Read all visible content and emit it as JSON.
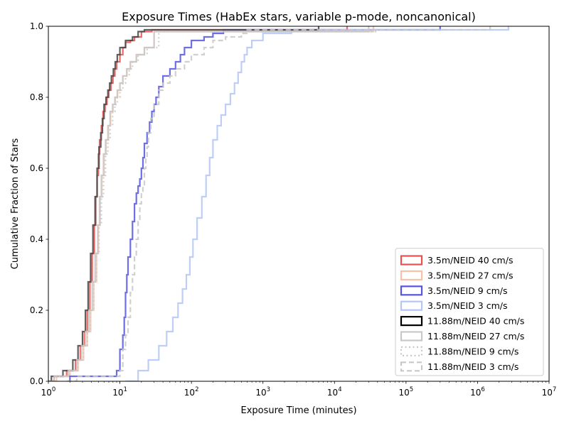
{
  "chart_data": {
    "type": "line",
    "subtype": "cumulative-step",
    "title": "Exposure Times (HabEx stars, variable p-mode, noncanonical)",
    "xlabel": "Exposure Time (minutes)",
    "ylabel": "Cumulative Fraction of Stars",
    "xscale": "log",
    "xlim": [
      1,
      10000000
    ],
    "ylim": [
      0,
      1
    ],
    "grid": false,
    "legend_position": "lower-right",
    "x_ticks": [
      {
        "base": "10",
        "exp": "0"
      },
      {
        "base": "10",
        "exp": "1"
      },
      {
        "base": "10",
        "exp": "2"
      },
      {
        "base": "10",
        "exp": "3"
      },
      {
        "base": "10",
        "exp": "4"
      },
      {
        "base": "10",
        "exp": "5"
      },
      {
        "base": "10",
        "exp": "6"
      },
      {
        "base": "10",
        "exp": "7"
      }
    ],
    "y_ticks": [
      "0.0",
      "0.2",
      "0.4",
      "0.6",
      "0.8",
      "1.0"
    ],
    "series": [
      {
        "name": "3.5m/NEID 40 cm/s",
        "color": "#e8514f",
        "style": "solid",
        "x": [
          1,
          1.2,
          1.8,
          2.4,
          2.8,
          3.2,
          3.5,
          3.8,
          4.1,
          4.4,
          4.6,
          4.8,
          5.0,
          5.2,
          5.5,
          5.8,
          6.2,
          6.6,
          7.0,
          7.5,
          8.0,
          8.5,
          9.0,
          10,
          11,
          12,
          14,
          16,
          20,
          28,
          15000
        ],
        "y": [
          0.0,
          0.014,
          0.03,
          0.06,
          0.1,
          0.14,
          0.2,
          0.28,
          0.36,
          0.44,
          0.52,
          0.58,
          0.64,
          0.68,
          0.72,
          0.76,
          0.78,
          0.8,
          0.82,
          0.84,
          0.86,
          0.88,
          0.9,
          0.92,
          0.94,
          0.955,
          0.96,
          0.97,
          0.985,
          0.99,
          1.0
        ]
      },
      {
        "name": "3.5m/NEID 27 cm/s",
        "color": "#f9c2a6",
        "style": "solid",
        "x": [
          1,
          1.3,
          2.0,
          2.6,
          3.1,
          3.5,
          3.9,
          4.3,
          4.7,
          5.0,
          5.3,
          5.6,
          6.0,
          6.4,
          6.9,
          7.4,
          8.0,
          8.6,
          9.3,
          10,
          11,
          12.5,
          14,
          17,
          22,
          30,
          35000
        ],
        "y": [
          0.0,
          0.014,
          0.03,
          0.06,
          0.1,
          0.14,
          0.2,
          0.28,
          0.36,
          0.44,
          0.52,
          0.58,
          0.64,
          0.68,
          0.72,
          0.76,
          0.78,
          0.8,
          0.82,
          0.84,
          0.86,
          0.88,
          0.9,
          0.92,
          0.94,
          0.985,
          1.0
        ]
      },
      {
        "name": "3.5m/NEID 9 cm/s",
        "color": "#5555e0",
        "style": "solid",
        "x": [
          1.9,
          2.0,
          9.0,
          10,
          11,
          11.5,
          12,
          12.5,
          13,
          14,
          15,
          16,
          17,
          18,
          19,
          20,
          21,
          22,
          24,
          26,
          28,
          30,
          32,
          35,
          40,
          50,
          60,
          70,
          80,
          100,
          150,
          200,
          280,
          300000
        ],
        "y": [
          0.0,
          0.014,
          0.03,
          0.09,
          0.13,
          0.18,
          0.25,
          0.3,
          0.35,
          0.4,
          0.45,
          0.5,
          0.53,
          0.55,
          0.57,
          0.6,
          0.63,
          0.67,
          0.7,
          0.73,
          0.76,
          0.78,
          0.8,
          0.83,
          0.86,
          0.88,
          0.9,
          0.92,
          0.94,
          0.96,
          0.97,
          0.98,
          0.99,
          1.0
        ]
      },
      {
        "name": "3.5m/NEID 3 cm/s",
        "color": "#b3c6f5",
        "style": "solid",
        "x": [
          12,
          18,
          25,
          35,
          45,
          55,
          65,
          75,
          85,
          95,
          105,
          120,
          140,
          160,
          180,
          200,
          230,
          260,
          300,
          350,
          400,
          450,
          500,
          550,
          600,
          700,
          1000,
          2500,
          2700000
        ],
        "y": [
          0.0,
          0.03,
          0.06,
          0.1,
          0.14,
          0.18,
          0.22,
          0.26,
          0.3,
          0.35,
          0.4,
          0.46,
          0.52,
          0.58,
          0.63,
          0.68,
          0.72,
          0.75,
          0.78,
          0.81,
          0.84,
          0.87,
          0.9,
          0.92,
          0.94,
          0.96,
          0.98,
          0.99,
          1.0
        ]
      },
      {
        "name": "11.88m/NEID 40 cm/s",
        "color": "#444444",
        "style": "solid",
        "legend_edge": "#000000",
        "x": [
          1,
          1.1,
          1.6,
          2.2,
          2.6,
          3.0,
          3.3,
          3.6,
          3.9,
          4.2,
          4.5,
          4.8,
          5.1,
          5.4,
          5.7,
          6.0,
          6.4,
          6.8,
          7.2,
          7.6,
          8.1,
          8.6,
          9.2,
          10,
          12,
          15,
          18,
          22,
          6000
        ],
        "y": [
          0.0,
          0.014,
          0.03,
          0.06,
          0.1,
          0.14,
          0.2,
          0.28,
          0.36,
          0.44,
          0.52,
          0.6,
          0.66,
          0.7,
          0.74,
          0.78,
          0.8,
          0.82,
          0.84,
          0.86,
          0.88,
          0.9,
          0.92,
          0.94,
          0.96,
          0.97,
          0.985,
          0.99,
          1.0
        ]
      },
      {
        "name": "11.88m/NEID 27 cm/s",
        "color": "#c8c8c8",
        "style": "solid",
        "x": [
          1,
          1.2,
          1.9,
          2.5,
          2.9,
          3.3,
          3.7,
          4.1,
          4.5,
          4.9,
          5.2,
          5.5,
          5.9,
          6.3,
          6.8,
          7.3,
          7.9,
          8.5,
          9.2,
          10,
          11,
          12.5,
          14,
          17,
          22,
          30,
          30000
        ],
        "y": [
          0.0,
          0.014,
          0.03,
          0.06,
          0.1,
          0.14,
          0.2,
          0.28,
          0.36,
          0.44,
          0.52,
          0.58,
          0.64,
          0.68,
          0.72,
          0.76,
          0.78,
          0.8,
          0.82,
          0.84,
          0.86,
          0.88,
          0.9,
          0.92,
          0.94,
          0.985,
          1.0
        ]
      },
      {
        "name": "11.88m/NEID 9 cm/s",
        "color": "#c8c8c8",
        "style": "dotted",
        "x": [
          1,
          1.2,
          2.0,
          2.6,
          3.1,
          3.5,
          3.9,
          4.3,
          4.7,
          5.1,
          5.5,
          5.9,
          6.3,
          6.8,
          7.3,
          7.9,
          8.5,
          9.2,
          10,
          11,
          12,
          13.5,
          15,
          18,
          24,
          35,
          40000
        ],
        "y": [
          0.0,
          0.014,
          0.03,
          0.06,
          0.1,
          0.14,
          0.2,
          0.28,
          0.36,
          0.44,
          0.52,
          0.58,
          0.64,
          0.68,
          0.72,
          0.76,
          0.78,
          0.8,
          0.82,
          0.84,
          0.86,
          0.88,
          0.9,
          0.92,
          0.94,
          0.985,
          1.0
        ]
      },
      {
        "name": "11.88m/NEID 3 cm/s",
        "color": "#c8c8c8",
        "style": "dashed",
        "x": [
          1.8,
          2.5,
          10,
          11,
          12,
          13,
          14,
          15,
          16,
          17,
          18,
          19,
          20,
          21,
          22,
          23,
          24,
          25,
          27,
          30,
          35,
          40,
          50,
          60,
          80,
          100,
          150,
          200,
          300,
          500,
          600,
          1500000
        ],
        "y": [
          0.0,
          0.014,
          0.03,
          0.09,
          0.13,
          0.18,
          0.25,
          0.3,
          0.35,
          0.4,
          0.45,
          0.5,
          0.53,
          0.55,
          0.6,
          0.63,
          0.66,
          0.7,
          0.74,
          0.78,
          0.82,
          0.84,
          0.86,
          0.88,
          0.9,
          0.92,
          0.94,
          0.96,
          0.97,
          0.98,
          0.99,
          1.0
        ]
      }
    ]
  }
}
